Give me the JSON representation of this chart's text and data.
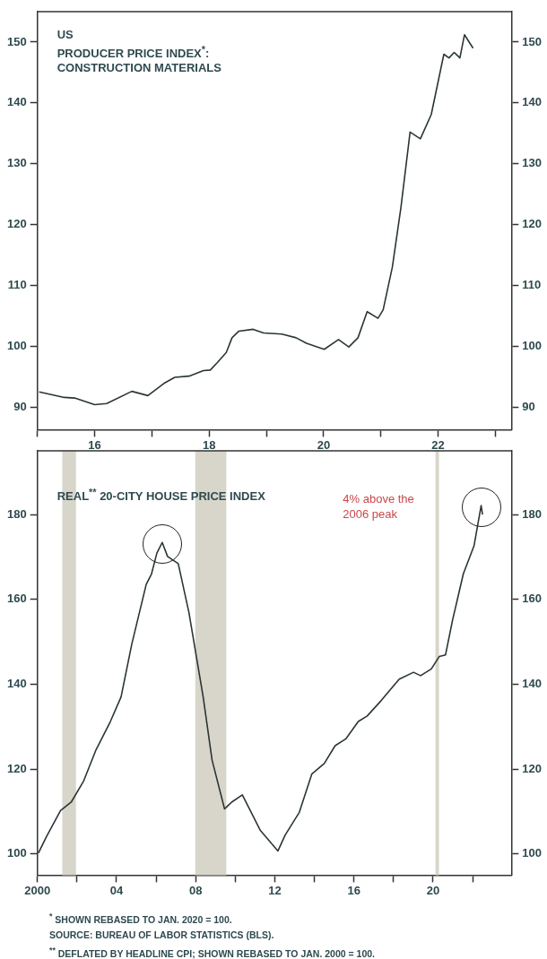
{
  "chart_data": [
    {
      "type": "line",
      "title": "US\nPRODUCER PRICE INDEX$^{*}$:\nCONSTRUCTION MATERIALS",
      "series": [
        {
          "color": "#2b3535",
          "x": [
            2015.03,
            2015.47,
            2015.65,
            2016.0,
            2016.21,
            2016.65,
            2016.93,
            2017.21,
            2017.4,
            2017.65,
            2017.9,
            2018.02,
            2018.14,
            2018.3,
            2018.4,
            2018.52,
            2018.77,
            2018.95,
            2019.27,
            2019.52,
            2019.7,
            2020.01,
            2020.26,
            2020.44,
            2020.6,
            2020.76,
            2020.95,
            2021.04,
            2021.2,
            2021.35,
            2021.51,
            2021.69,
            2021.88,
            2022.1,
            2022.19,
            2022.28,
            2022.38,
            2022.46,
            2022.61
          ],
          "values": [
            92.5,
            91.6,
            91.5,
            90.4,
            90.6,
            92.6,
            91.9,
            93.9,
            94.9,
            95.1,
            96.0,
            96.1,
            97.3,
            99.0,
            101.4,
            102.5,
            102.8,
            102.2,
            102.0,
            101.4,
            100.5,
            99.5,
            101.1,
            99.9,
            101.4,
            105.7,
            104.6,
            106.0,
            113.0,
            122.8,
            135.2,
            134.1,
            138.1,
            148.0,
            147.4,
            148.3,
            147.4,
            151.2,
            149.0
          ]
        }
      ],
      "xlim": [
        2015,
        2023.28
      ],
      "xticks": [
        {
          "value": 2015,
          "label": null
        },
        {
          "value": 2016,
          "label": "16"
        },
        {
          "value": 2017,
          "label": null
        },
        {
          "value": 2018,
          "label": "18"
        },
        {
          "value": 2019,
          "label": null
        },
        {
          "value": 2020,
          "label": "20"
        },
        {
          "value": 2021,
          "label": null
        },
        {
          "value": 2022,
          "label": "22"
        },
        {
          "value": 2023,
          "label": null
        }
      ],
      "ylim": [
        86.3,
        155
      ],
      "yticks": [
        90,
        100,
        110,
        120,
        130,
        140,
        150
      ],
      "y2lim": [
        86.3,
        155
      ],
      "y2ticks": [
        90,
        100,
        110,
        120,
        130,
        140,
        150
      ],
      "grid": false,
      "legend": false,
      "marker": "none",
      "line_style": "solid"
    },
    {
      "type": "line",
      "title": "REAL$^{**}$ 20-CITY HOUSE PRICE INDEX",
      "series": [
        {
          "color": "#2b3535",
          "x": [
            2000.05,
            2000.45,
            2001.17,
            2001.71,
            2002.34,
            2002.97,
            2003.69,
            2004.23,
            2004.77,
            2005.5,
            2005.77,
            2006.04,
            2006.31,
            2006.58,
            2007.12,
            2007.66,
            2008.38,
            2008.83,
            2009.46,
            2009.82,
            2010.36,
            2011.26,
            2012.16,
            2012.52,
            2013.24,
            2013.87,
            2014.5,
            2015.05,
            2015.59,
            2016.22,
            2016.67,
            2017.39,
            2018.29,
            2019.01,
            2019.37,
            2019.91,
            2020.31,
            2020.63,
            2020.99,
            2021.53,
            2022.07,
            2022.43,
            2022.5
          ],
          "values": [
            100.2,
            104.0,
            110.2,
            112.2,
            117.2,
            124.6,
            131.2,
            137.0,
            149.4,
            163.5,
            166.0,
            170.9,
            173.4,
            170.1,
            168.4,
            156.9,
            137.0,
            122.1,
            110.6,
            112.2,
            113.9,
            105.6,
            100.7,
            104.4,
            109.8,
            118.8,
            121.3,
            125.5,
            127.1,
            131.2,
            132.5,
            136.2,
            141.2,
            142.8,
            142.0,
            143.6,
            146.5,
            146.9,
            155.2,
            166.0,
            172.6,
            182.1,
            180.0
          ]
        }
      ],
      "xlim": [
        2000,
        2023.96
      ],
      "xticks": [
        2000,
        {
          "value": 2002,
          "label": null
        },
        {
          "value": 2004,
          "label": "04"
        },
        {
          "value": 2006,
          "label": null
        },
        {
          "value": 2008,
          "label": "08"
        },
        {
          "value": 2010,
          "label": null
        },
        {
          "value": 2012,
          "label": "12"
        },
        {
          "value": 2014,
          "label": null
        },
        {
          "value": 2016,
          "label": "16"
        },
        {
          "value": 2018,
          "label": null
        },
        {
          "value": 2020,
          "label": "20"
        },
        {
          "value": 2022,
          "label": null
        }
      ],
      "ylim": [
        95,
        195
      ],
      "yticks": [
        100,
        120,
        140,
        160,
        180
      ],
      "y2lim": [
        95,
        195
      ],
      "y2ticks": [
        100,
        120,
        140,
        160,
        180
      ],
      "bands": [
        {
          "axis": "x",
          "from": 2001.26,
          "to": 2001.95,
          "color": "#d8d5ca"
        },
        {
          "axis": "x",
          "from": 2007.98,
          "to": 2009.55,
          "color": "#d8d5ca"
        },
        {
          "axis": "x",
          "from": 2020.12,
          "to": 2020.3,
          "color": "#d8d5ca"
        }
      ],
      "annotations": [
        "4% above the\n2006 peak",
        "$^{*}$ SHOWN REBASED TO JAN. 2020 = 100.",
        "SOURCE: BUREAU OF LABOR STATISTICS (BLS).",
        "$^{**}$ DEFLATED BY HEADLINE CPI; SHOWN REBASED TO JAN. 2000 = 100."
      ],
      "grid": false,
      "legend": false,
      "marker": "none",
      "line_style": "solid"
    }
  ]
}
